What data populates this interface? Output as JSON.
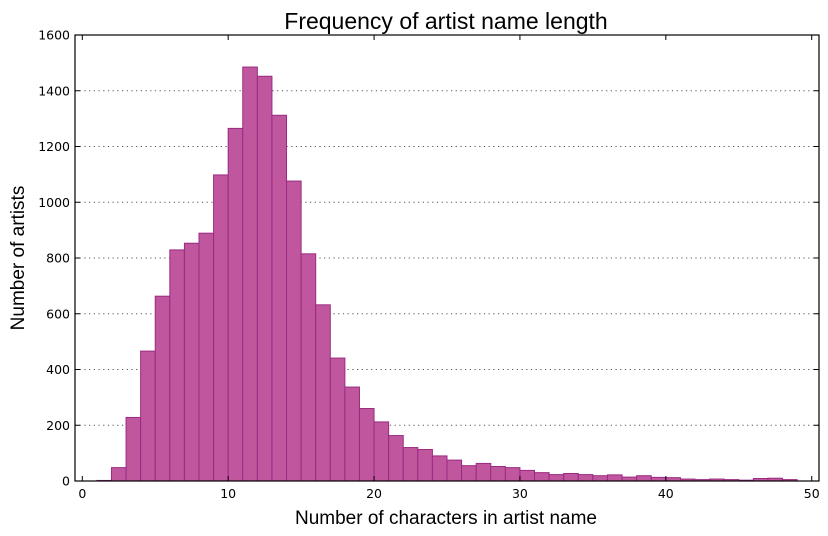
{
  "chart_data": {
    "type": "bar",
    "title": "Frequency of artist name length",
    "xlabel": "Number of characters in artist name",
    "ylabel": "Number of artists",
    "xlim": [
      -0.5,
      50.5
    ],
    "ylim": [
      0,
      1600
    ],
    "xticks": [
      "0",
      "10",
      "20",
      "30",
      "40",
      "50"
    ],
    "yticks": [
      "0",
      "200",
      "400",
      "600",
      "800",
      "1000",
      "1200",
      "1400",
      "1600"
    ],
    "grid": "horizontal dotted",
    "bar_color": "#c0579e",
    "bar_edge_color": "#9a2a82",
    "bin_start": 1,
    "bin_width": 1,
    "values": [
      2,
      48,
      228,
      466,
      663,
      829,
      853,
      889,
      1098,
      1265,
      1485,
      1452,
      1312,
      1076,
      815,
      632,
      441,
      337,
      260,
      212,
      163,
      120,
      113,
      90,
      75,
      55,
      63,
      52,
      48,
      38,
      30,
      23,
      27,
      23,
      19,
      22,
      14,
      19,
      13,
      12,
      7,
      5,
      7,
      5,
      3,
      9,
      10,
      5
    ]
  }
}
